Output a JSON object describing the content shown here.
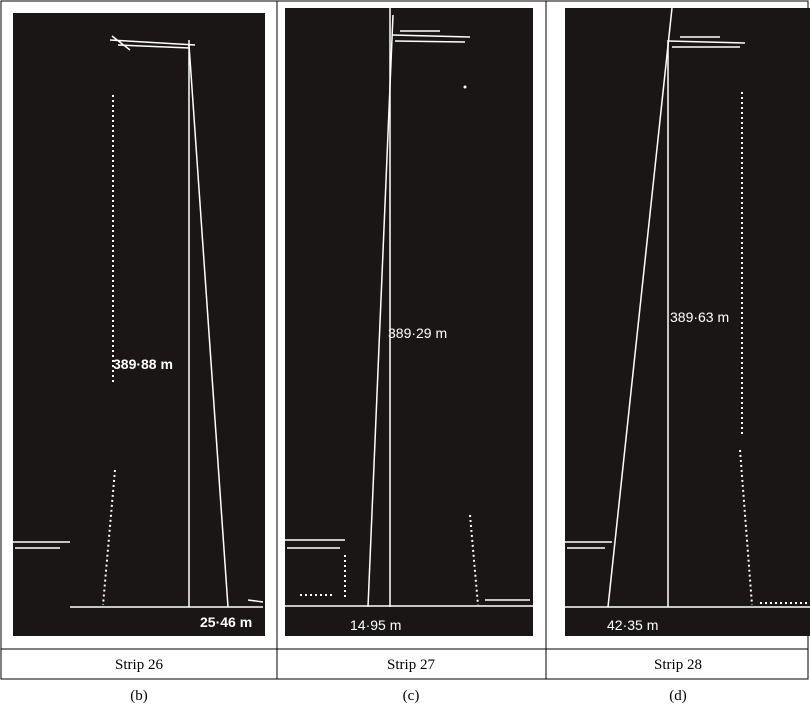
{
  "panels": [
    {
      "height_label": "389·88 m",
      "base_label": "25·46 m",
      "caption": "Strip 26",
      "sublabel": "(b)"
    },
    {
      "height_label": "389·29 m",
      "base_label": "14·95 m",
      "caption": "Strip 27",
      "sublabel": "(c)"
    },
    {
      "height_label": "389·63 m",
      "base_label": "42·35 m",
      "caption": "Strip 28",
      "sublabel": "(d)"
    }
  ]
}
